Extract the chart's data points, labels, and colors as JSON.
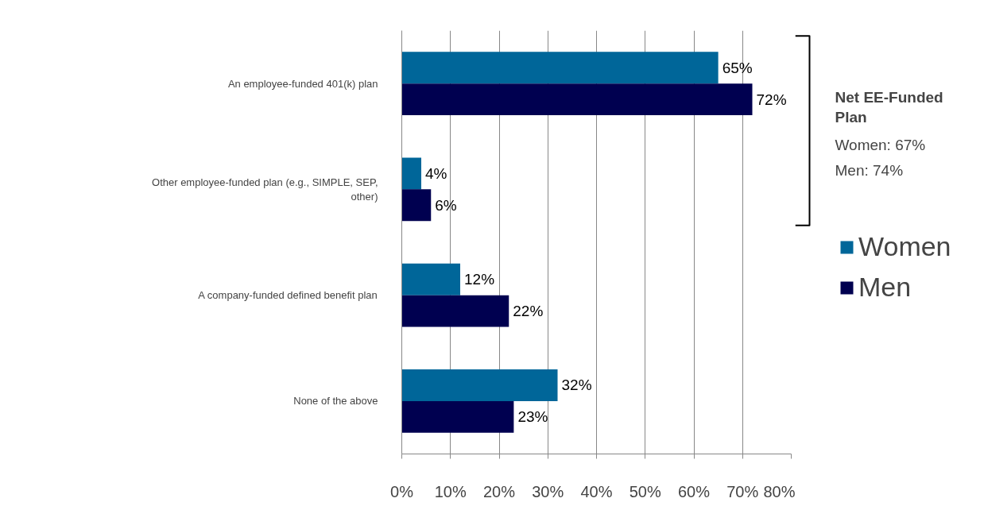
{
  "chart_data": {
    "type": "bar",
    "orientation": "horizontal",
    "categories": [
      "An employee-funded 401(k) plan",
      "Other employee-funded plan (e.g., SIMPLE, SEP, other)",
      "A company-funded defined benefit plan",
      "None of the above"
    ],
    "series": [
      {
        "name": "Women",
        "color": "#006699",
        "values": [
          65,
          4,
          12,
          32
        ],
        "value_labels": [
          "65%",
          "4%",
          "12%",
          "32%"
        ]
      },
      {
        "name": "Men",
        "color": "#000050",
        "values": [
          72,
          6,
          22,
          23
        ],
        "value_labels": [
          "72%",
          "6%",
          "22%",
          "23%"
        ]
      }
    ],
    "xlim": [
      0,
      80
    ],
    "xticks": [
      {
        "value": 0,
        "label": "0%"
      },
      {
        "value": 10,
        "label": "10%"
      },
      {
        "value": 20,
        "label": "20%"
      },
      {
        "value": 30,
        "label": "30%"
      },
      {
        "value": 40,
        "label": "40%"
      },
      {
        "value": 50,
        "label": "50%"
      },
      {
        "value": 60,
        "label": "60%"
      },
      {
        "value": 70,
        "label": "70%"
      },
      {
        "value": 80,
        "label": "80%"
      }
    ],
    "grid": "x",
    "legend": "right",
    "annotations": [
      "Net EE-Funded Plan",
      "Women: 67%",
      "Men: 74%"
    ]
  }
}
